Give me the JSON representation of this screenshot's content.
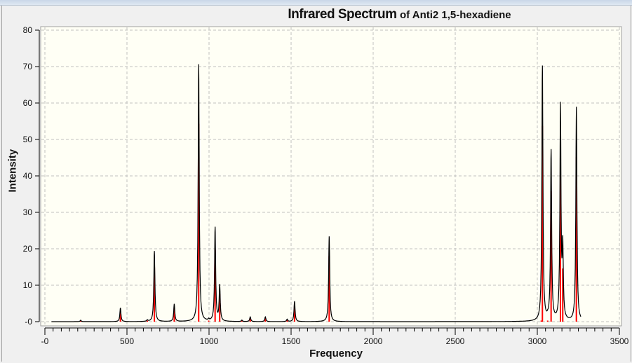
{
  "chart_data": {
    "type": "line",
    "title": "Infrared Spectrum",
    "subtitle": "of Anti2 1,5-hexadiene",
    "xlabel": "Frequency",
    "ylabel": "Intensity",
    "xlim": [
      -25,
      3510
    ],
    "ylim": [
      0,
      80
    ],
    "x_ticks": [
      "-0",
      "500",
      "1000",
      "1500",
      "2000",
      "2500",
      "3000",
      "3500"
    ],
    "y_ticks": [
      "-0",
      "10",
      "20",
      "30",
      "40",
      "50",
      "60",
      "70",
      "80"
    ],
    "grid": true,
    "legend": "none",
    "colors": {
      "spectrum": "#000000",
      "sticks": "#ff0000",
      "plot_bg": "#fffff5"
    },
    "sticks": {
      "frequency": [
        218,
        460,
        624,
        667,
        788,
        937,
        998,
        1037,
        1065,
        1200,
        1251,
        1343,
        1476,
        1521,
        1732,
        3024,
        3031,
        3063,
        3084,
        3141,
        3155,
        3238
      ],
      "intensity": [
        0.3,
        2.9,
        0.3,
        14.9,
        3.7,
        54.3,
        0.3,
        19.8,
        7.5,
        0.3,
        1.0,
        1.0,
        0.5,
        4.3,
        18.0,
        0.3,
        53.7,
        0.3,
        35.8,
        45.0,
        14.6,
        45.2
      ]
    },
    "spectrum_range": [
      40,
      3265
    ]
  }
}
